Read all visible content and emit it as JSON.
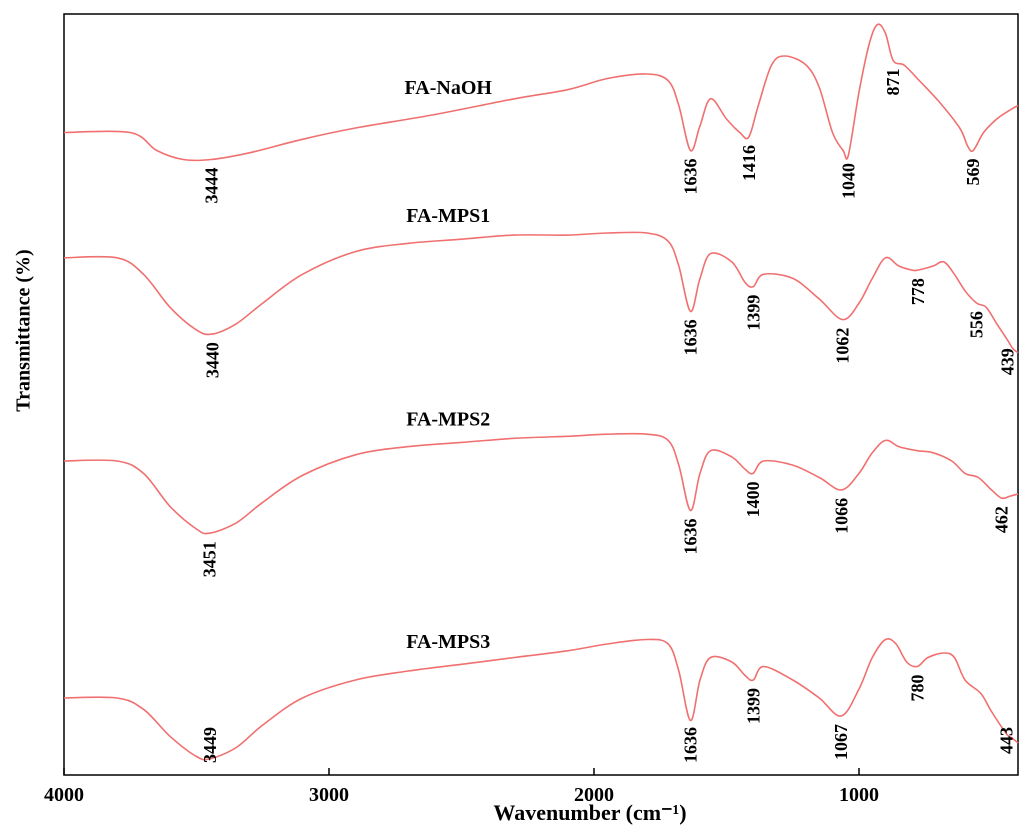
{
  "chart_data": {
    "type": "line",
    "title": "",
    "xlabel": "Wavenumber (cm⁻¹)",
    "ylabel": "Transmittance (%)",
    "xlim": [
      4000,
      400
    ],
    "x_ticks": [
      "4000",
      "3000",
      "2000",
      "1000"
    ],
    "x_tick_values": [
      4000,
      3000,
      2000,
      1000
    ],
    "line_color": "#f07070",
    "grid": false,
    "series": [
      {
        "name": "FA-NaOH",
        "points": [
          [
            4000,
            0.7
          ],
          [
            3750,
            0.7
          ],
          [
            3650,
            0.62
          ],
          [
            3550,
            0.58
          ],
          [
            3444,
            0.58
          ],
          [
            3300,
            0.61
          ],
          [
            3100,
            0.67
          ],
          [
            2900,
            0.72
          ],
          [
            2600,
            0.78
          ],
          [
            2300,
            0.85
          ],
          [
            2100,
            0.89
          ],
          [
            1950,
            0.94
          ],
          [
            1800,
            0.96
          ],
          [
            1720,
            0.93
          ],
          [
            1680,
            0.82
          ],
          [
            1636,
            0.62
          ],
          [
            1600,
            0.73
          ],
          [
            1560,
            0.85
          ],
          [
            1500,
            0.76
          ],
          [
            1450,
            0.7
          ],
          [
            1416,
            0.68
          ],
          [
            1380,
            0.82
          ],
          [
            1330,
            1.0
          ],
          [
            1280,
            1.04
          ],
          [
            1200,
            1.0
          ],
          [
            1150,
            0.9
          ],
          [
            1100,
            0.7
          ],
          [
            1060,
            0.62
          ],
          [
            1040,
            0.6
          ],
          [
            1000,
            0.88
          ],
          [
            960,
            1.1
          ],
          [
            930,
            1.18
          ],
          [
            900,
            1.14
          ],
          [
            871,
            1.02
          ],
          [
            830,
            1.0
          ],
          [
            780,
            0.94
          ],
          [
            700,
            0.84
          ],
          [
            620,
            0.72
          ],
          [
            590,
            0.64
          ],
          [
            569,
            0.62
          ],
          [
            530,
            0.7
          ],
          [
            480,
            0.76
          ],
          [
            430,
            0.8
          ],
          [
            400,
            0.82
          ]
        ],
        "peaks": [
          3444,
          1636,
          1416,
          1040,
          871,
          569
        ]
      },
      {
        "name": "FA-MPS1",
        "points": [
          [
            4000,
            0.92
          ],
          [
            3800,
            0.92
          ],
          [
            3700,
            0.84
          ],
          [
            3600,
            0.68
          ],
          [
            3500,
            0.57
          ],
          [
            3440,
            0.55
          ],
          [
            3350,
            0.6
          ],
          [
            3250,
            0.7
          ],
          [
            3100,
            0.84
          ],
          [
            2900,
            0.95
          ],
          [
            2700,
            0.99
          ],
          [
            2500,
            1.01
          ],
          [
            2300,
            1.03
          ],
          [
            2100,
            1.03
          ],
          [
            1950,
            1.04
          ],
          [
            1800,
            1.04
          ],
          [
            1720,
            1.0
          ],
          [
            1680,
            0.88
          ],
          [
            1636,
            0.66
          ],
          [
            1600,
            0.82
          ],
          [
            1560,
            0.94
          ],
          [
            1480,
            0.9
          ],
          [
            1430,
            0.8
          ],
          [
            1399,
            0.78
          ],
          [
            1360,
            0.84
          ],
          [
            1250,
            0.82
          ],
          [
            1150,
            0.72
          ],
          [
            1062,
            0.62
          ],
          [
            1000,
            0.7
          ],
          [
            950,
            0.82
          ],
          [
            900,
            0.92
          ],
          [
            850,
            0.88
          ],
          [
            800,
            0.86
          ],
          [
            778,
            0.86
          ],
          [
            720,
            0.88
          ],
          [
            680,
            0.9
          ],
          [
            640,
            0.84
          ],
          [
            600,
            0.76
          ],
          [
            556,
            0.7
          ],
          [
            520,
            0.68
          ],
          [
            480,
            0.6
          ],
          [
            439,
            0.52
          ],
          [
            420,
            0.48
          ],
          [
            400,
            0.46
          ]
        ],
        "peaks": [
          3440,
          1636,
          1399,
          1062,
          778,
          556,
          439
        ]
      },
      {
        "name": "FA-MPS2",
        "points": [
          [
            4000,
            0.88
          ],
          [
            3800,
            0.88
          ],
          [
            3700,
            0.82
          ],
          [
            3600,
            0.66
          ],
          [
            3500,
            0.55
          ],
          [
            3451,
            0.53
          ],
          [
            3350,
            0.58
          ],
          [
            3250,
            0.68
          ],
          [
            3100,
            0.81
          ],
          [
            2900,
            0.91
          ],
          [
            2700,
            0.95
          ],
          [
            2500,
            0.97
          ],
          [
            2300,
            0.99
          ],
          [
            2100,
            1.0
          ],
          [
            1950,
            1.01
          ],
          [
            1800,
            1.01
          ],
          [
            1720,
            0.98
          ],
          [
            1680,
            0.86
          ],
          [
            1636,
            0.64
          ],
          [
            1600,
            0.82
          ],
          [
            1560,
            0.93
          ],
          [
            1480,
            0.9
          ],
          [
            1430,
            0.84
          ],
          [
            1400,
            0.82
          ],
          [
            1360,
            0.88
          ],
          [
            1250,
            0.86
          ],
          [
            1150,
            0.8
          ],
          [
            1066,
            0.74
          ],
          [
            1000,
            0.82
          ],
          [
            950,
            0.92
          ],
          [
            900,
            0.98
          ],
          [
            850,
            0.95
          ],
          [
            780,
            0.93
          ],
          [
            720,
            0.92
          ],
          [
            650,
            0.88
          ],
          [
            600,
            0.82
          ],
          [
            550,
            0.8
          ],
          [
            500,
            0.74
          ],
          [
            462,
            0.7
          ],
          [
            430,
            0.71
          ],
          [
            400,
            0.72
          ]
        ],
        "peaks": [
          3451,
          1636,
          1400,
          1066,
          462
        ]
      },
      {
        "name": "FA-MPS3",
        "points": [
          [
            4000,
            0.72
          ],
          [
            3800,
            0.72
          ],
          [
            3700,
            0.67
          ],
          [
            3600,
            0.55
          ],
          [
            3500,
            0.46
          ],
          [
            3449,
            0.45
          ],
          [
            3350,
            0.5
          ],
          [
            3250,
            0.6
          ],
          [
            3100,
            0.72
          ],
          [
            2900,
            0.8
          ],
          [
            2700,
            0.84
          ],
          [
            2500,
            0.87
          ],
          [
            2300,
            0.9
          ],
          [
            2100,
            0.93
          ],
          [
            1950,
            0.96
          ],
          [
            1800,
            0.98
          ],
          [
            1720,
            0.96
          ],
          [
            1680,
            0.84
          ],
          [
            1636,
            0.62
          ],
          [
            1600,
            0.8
          ],
          [
            1560,
            0.9
          ],
          [
            1480,
            0.88
          ],
          [
            1430,
            0.82
          ],
          [
            1399,
            0.8
          ],
          [
            1360,
            0.86
          ],
          [
            1250,
            0.8
          ],
          [
            1150,
            0.72
          ],
          [
            1067,
            0.64
          ],
          [
            1000,
            0.76
          ],
          [
            950,
            0.9
          ],
          [
            900,
            0.98
          ],
          [
            860,
            0.96
          ],
          [
            820,
            0.88
          ],
          [
            780,
            0.86
          ],
          [
            740,
            0.9
          ],
          [
            680,
            0.92
          ],
          [
            640,
            0.9
          ],
          [
            600,
            0.8
          ],
          [
            540,
            0.74
          ],
          [
            500,
            0.66
          ],
          [
            443,
            0.56
          ],
          [
            420,
            0.54
          ],
          [
            400,
            0.52
          ]
        ],
        "peaks": [
          3449,
          1636,
          1399,
          1067,
          780,
          443
        ]
      }
    ]
  }
}
